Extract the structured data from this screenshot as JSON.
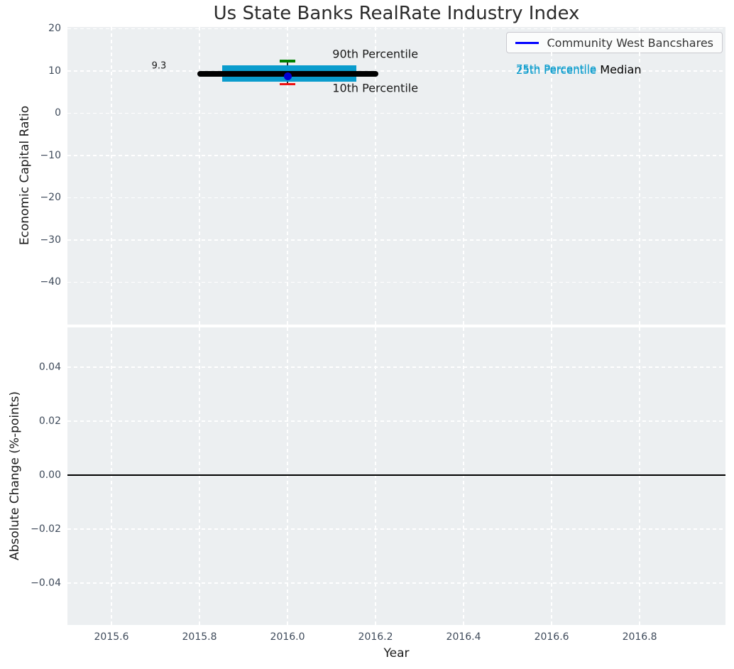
{
  "figure": {
    "title": "Us State Banks RealRate Industry Index",
    "background": "#ffffff",
    "plot_background": "#eceff1",
    "grid_color": "#ffffff",
    "tick_color": "#3f4b5b"
  },
  "chart_data": [
    {
      "type": "scatter",
      "subplot": "top",
      "title": "Us State Banks RealRate Industry Index",
      "ylabel": "Economic Capital Ratio",
      "xlim": [
        2015.5,
        2016.995
      ],
      "ylim": [
        -50,
        20.42
      ],
      "grid": true,
      "legend": {
        "position": "upper right",
        "entries": [
          {
            "label": "Community West Bancshares",
            "color": "#0000ff"
          }
        ]
      },
      "xticks": [
        {
          "v": 2015.6
        },
        {
          "v": 2015.8
        },
        {
          "v": 2016.0
        },
        {
          "v": 2016.2
        },
        {
          "v": 2016.4
        },
        {
          "v": 2016.6
        },
        {
          "v": 2016.8
        }
      ],
      "yticks": [
        {
          "v": 20,
          "label": "20"
        },
        {
          "v": 10,
          "label": "10"
        },
        {
          "v": 0,
          "label": "0"
        },
        {
          "v": -10,
          "label": "−10"
        },
        {
          "v": -20,
          "label": "−20"
        },
        {
          "v": -30,
          "label": "−30"
        },
        {
          "v": -40,
          "label": "−40"
        }
      ],
      "median_line": {
        "label": "Median",
        "value": 9.3,
        "x_start": 2015.795,
        "x_end": 2016.207,
        "color": "#000000"
      },
      "iqr_band": {
        "upper_label": "75th Percentile",
        "lower_label": "25th Percentile",
        "p75": 11.3,
        "p25": 7.5,
        "x_start": 2015.852,
        "x_end": 2016.156,
        "color": "#0a9ccd"
      },
      "errorbar": {
        "series": "Community West Bancshares",
        "x": 2016.0,
        "y": 8.8,
        "p90": 12.35,
        "p10": 6.95,
        "p90_label": "90th Percentile",
        "p10_label": "10th Percentile",
        "p90_cap_color": "#008000",
        "p10_cap_color": "#ee1111",
        "marker_color": "#0000d6",
        "stem_color": "#2a2a2a"
      },
      "annotations": [
        {
          "text": "9.3",
          "x": 2015.708,
          "y": 11.2,
          "color": "#1a1a1a",
          "size": 13,
          "align": "center"
        },
        {
          "text": "90th Percentile",
          "x": 2016.102,
          "y": 14.0,
          "color": "#1a1a1a",
          "size": 16,
          "align": "left"
        },
        {
          "text": "10th Percentile",
          "x": 2016.102,
          "y": 5.95,
          "color": "#1a1a1a",
          "size": 16,
          "align": "left"
        },
        {
          "text": "75th Percentile",
          "x": 2016.519,
          "y": 10.45,
          "color": "#0a9ccd",
          "size": 15,
          "align": "left"
        },
        {
          "text": "25th Percentile",
          "x": 2016.519,
          "y": 10.2,
          "color": "#0a9ccd",
          "size": 15,
          "align": "left"
        },
        {
          "text": "Median",
          "x": 2016.71,
          "y": 10.33,
          "color": "#000000",
          "size": 16,
          "align": "left"
        }
      ]
    },
    {
      "type": "line",
      "subplot": "bottom",
      "ylabel": "Absolute Change (%-points)",
      "xlabel": "Year",
      "xlim": [
        2015.5,
        2016.995
      ],
      "ylim": [
        -0.0555,
        0.0547
      ],
      "grid": true,
      "xticks": [
        {
          "v": 2015.6,
          "label": "2015.6"
        },
        {
          "v": 2015.8,
          "label": "2015.8"
        },
        {
          "v": 2016.0,
          "label": "2016.0"
        },
        {
          "v": 2016.2,
          "label": "2016.2"
        },
        {
          "v": 2016.4,
          "label": "2016.4"
        },
        {
          "v": 2016.6,
          "label": "2016.6"
        },
        {
          "v": 2016.8,
          "label": "2016.8"
        }
      ],
      "yticks": [
        {
          "v": 0.04,
          "label": "0.04"
        },
        {
          "v": 0.02,
          "label": "0.02"
        },
        {
          "v": 0,
          "label": "0.00"
        },
        {
          "v": -0.02,
          "label": "−0.02"
        },
        {
          "v": -0.04,
          "label": "−0.04"
        }
      ],
      "zero_line": {
        "value": 0,
        "color": "#000000"
      },
      "series": []
    }
  ]
}
